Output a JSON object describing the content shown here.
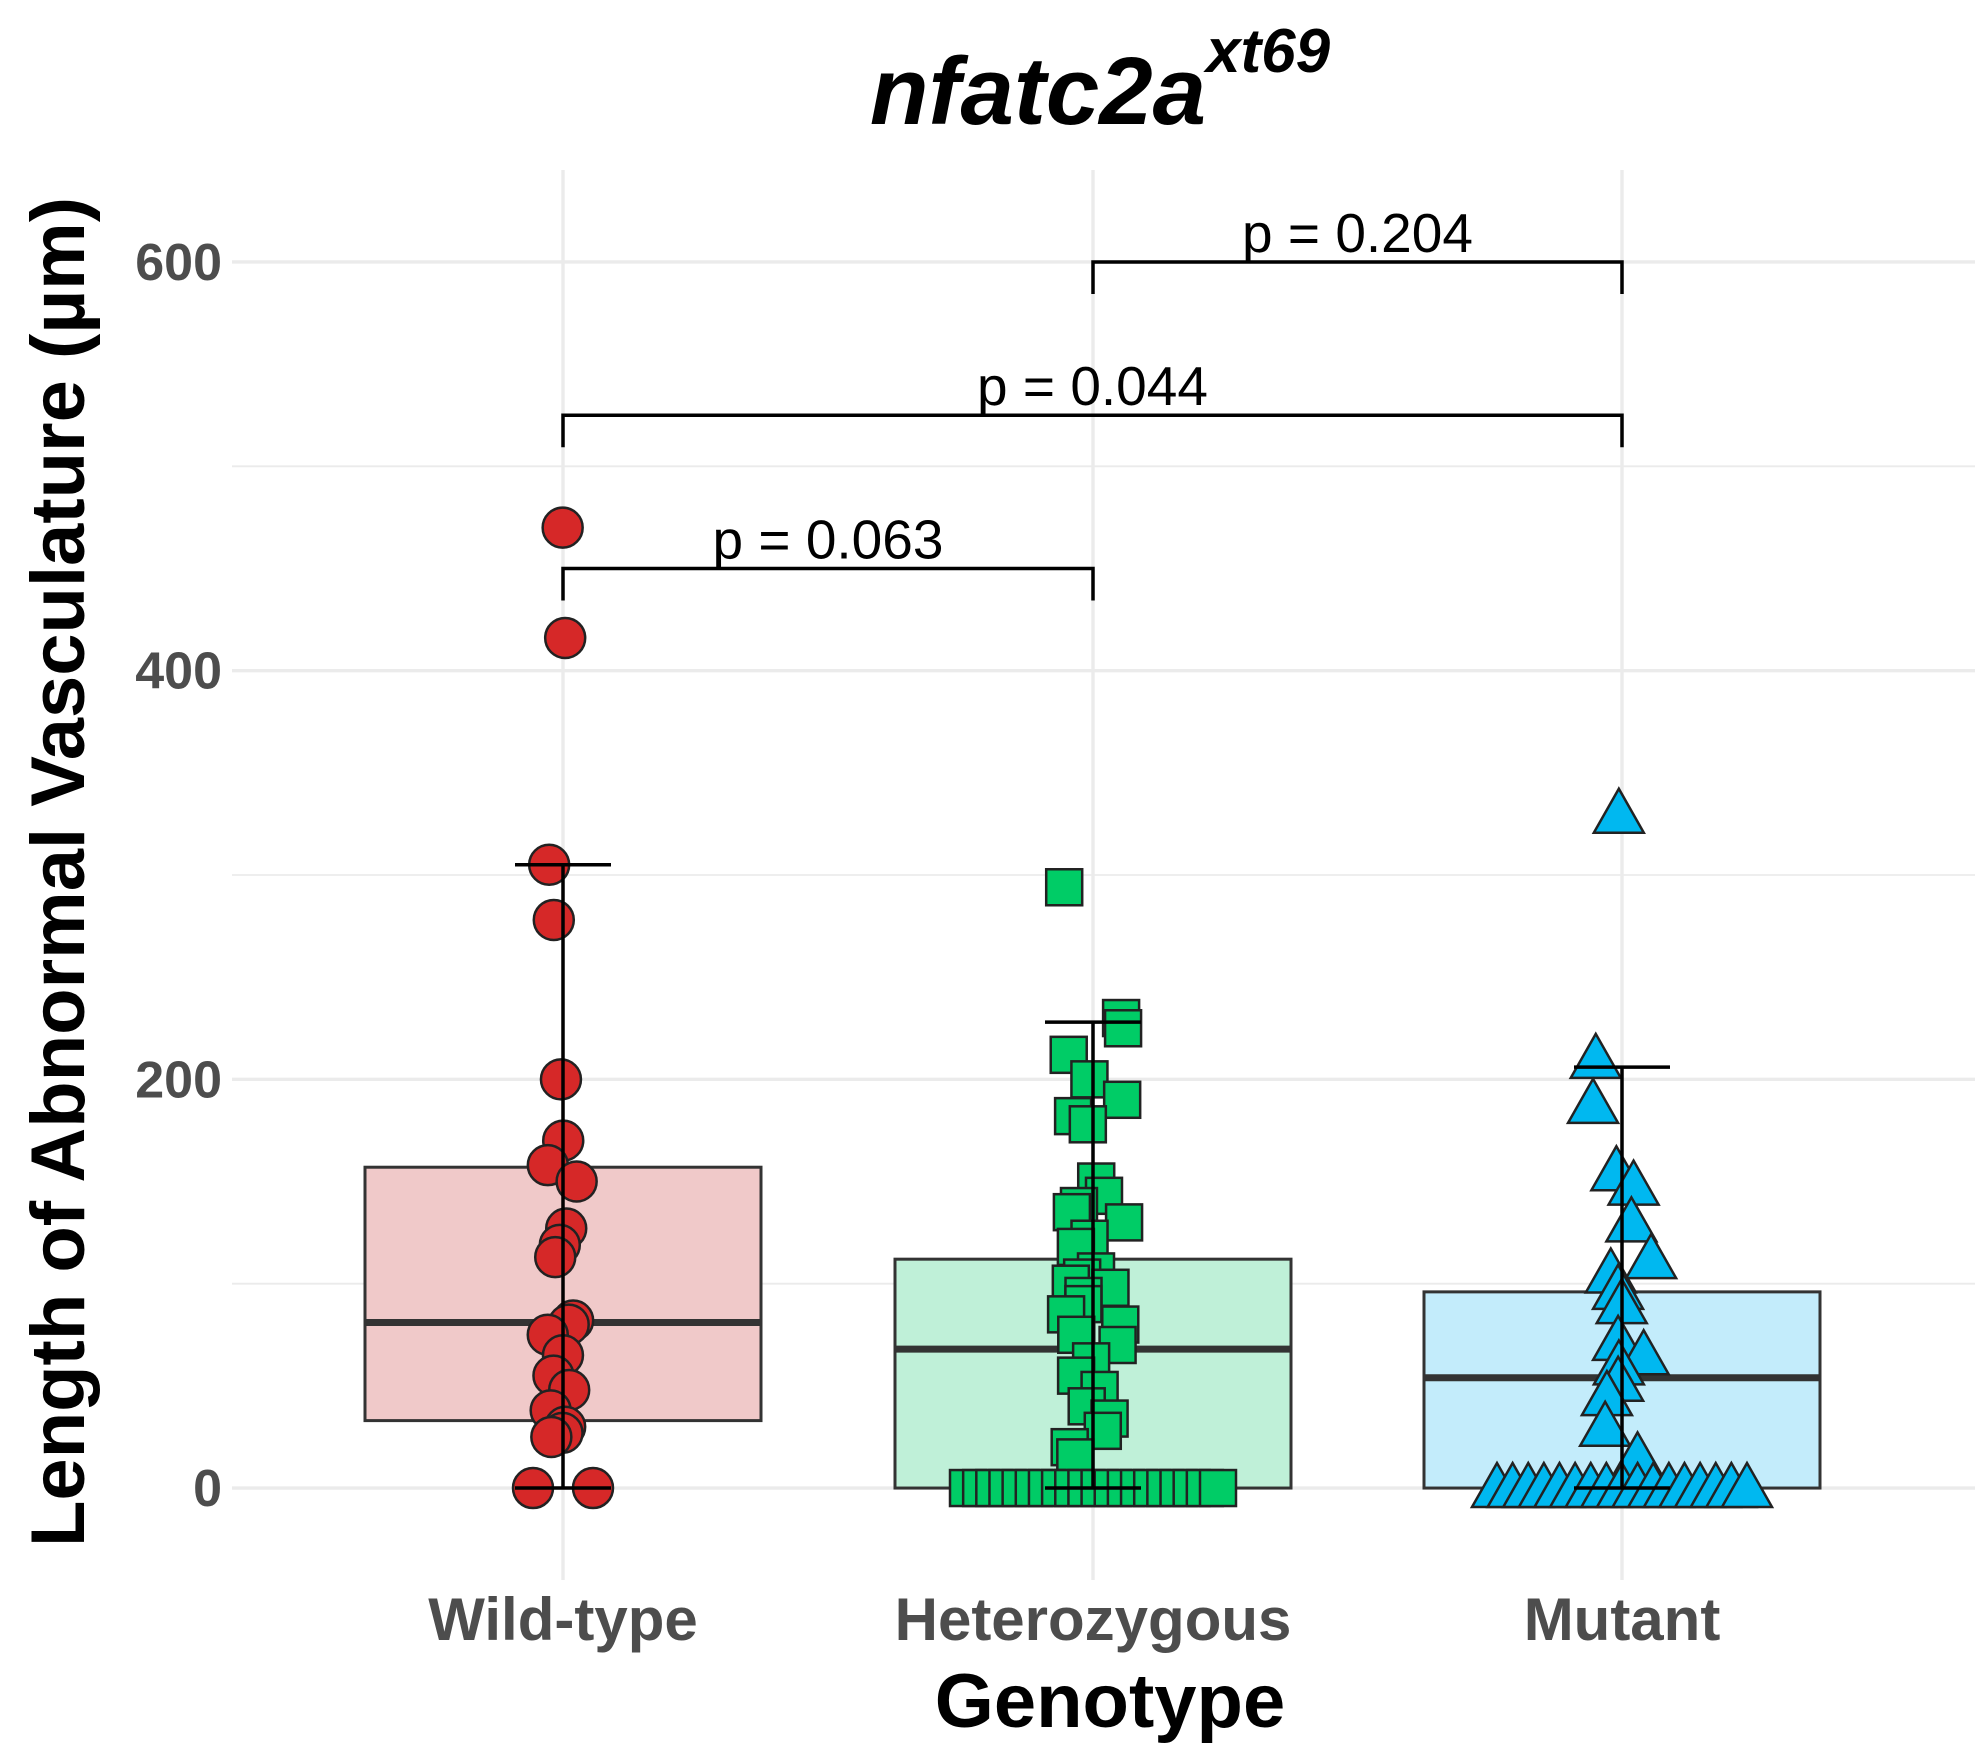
{
  "chart_data": {
    "type": "box",
    "title": "nfatc2a",
    "title_superscript": "xt69",
    "xlabel": "Genotype",
    "ylabel": "Length of Abnormal Vasculature (µm)",
    "ylim": [
      -45,
      645
    ],
    "yticks": [
      "0",
      "200",
      "400",
      "600"
    ],
    "categories": [
      "Wild-type",
      "Heterozygous",
      "Mutant"
    ],
    "groups": [
      {
        "name": "Wild-type",
        "fill": "#f0c9c9",
        "point_color": "#d62828",
        "shape": "circle",
        "box": {
          "q1": 33,
          "median": 81,
          "q3": 157,
          "whisker_low": 0,
          "whisker_high": 305
        },
        "points": [
          470,
          416,
          305,
          278,
          200,
          170,
          158,
          150,
          127,
          119,
          113,
          82,
          80,
          75,
          65,
          55,
          48,
          38,
          30,
          27,
          25,
          0,
          0
        ]
      },
      {
        "name": "Heterozygous",
        "fill": "#bff0d8",
        "point_color": "#00cc66",
        "shape": "square",
        "box": {
          "q1": 0,
          "median": 68,
          "q3": 112,
          "whisker_low": 0,
          "whisker_high": 228
        },
        "points": [
          294,
          230,
          225,
          212,
          200,
          190,
          182,
          178,
          150,
          143,
          138,
          135,
          130,
          122,
          118,
          106,
          103,
          100,
          98,
          94,
          90,
          85,
          80,
          75,
          70,
          62,
          55,
          48,
          40,
          34,
          28,
          20,
          15,
          0,
          0,
          0,
          0,
          0,
          0,
          0,
          0,
          0,
          0,
          0,
          0,
          0,
          0,
          0,
          0,
          0,
          0,
          0,
          0
        ]
      },
      {
        "name": "Mutant",
        "fill": "#c3ecfb",
        "point_color": "#00b8f0",
        "shape": "triangle",
        "box": {
          "q1": 0,
          "median": 54,
          "q3": 96,
          "whisker_low": 0,
          "whisker_high": 206
        },
        "points": [
          330,
          210,
          188,
          155,
          148,
          130,
          112,
          105,
          97,
          90,
          72,
          65,
          60,
          52,
          45,
          30,
          15,
          0,
          0,
          0,
          0,
          0,
          0,
          0,
          0,
          0,
          0,
          0,
          0,
          0,
          0,
          0,
          0,
          0
        ]
      }
    ],
    "comparisons": [
      {
        "from": "Wild-type",
        "to": "Heterozygous",
        "label": "p = 0.063",
        "y": 450
      },
      {
        "from": "Wild-type",
        "to": "Mutant",
        "label": "p = 0.044",
        "y": 525
      },
      {
        "from": "Heterozygous",
        "to": "Mutant",
        "label": "p = 0.204",
        "y": 600
      }
    ]
  }
}
